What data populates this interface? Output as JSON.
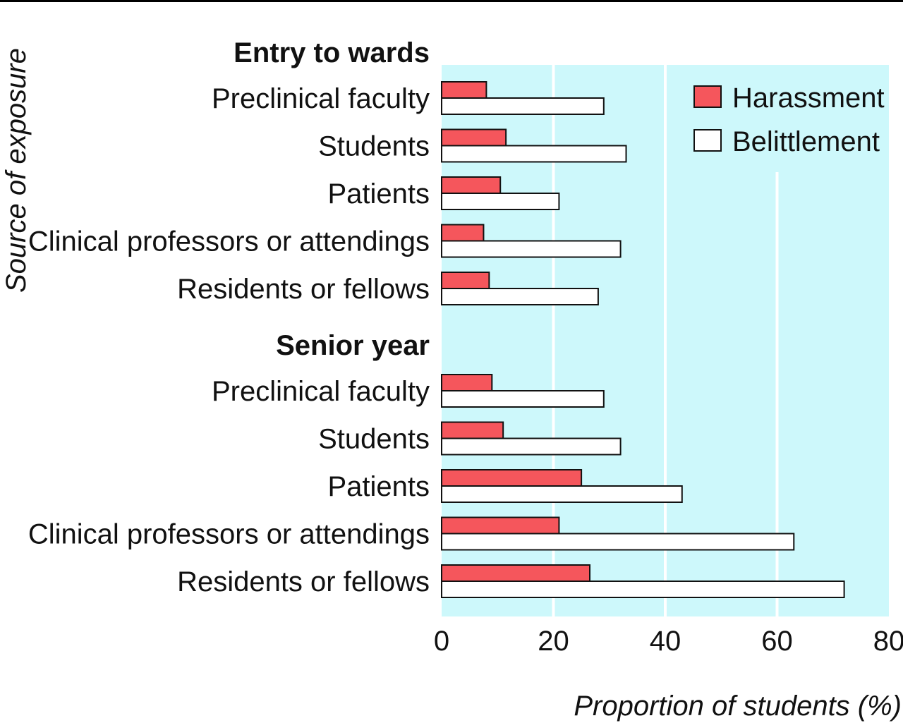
{
  "chart_data": {
    "type": "bar",
    "orientation": "horizontal",
    "ylabel": "Source of exposure",
    "xlabel": "Proportion of students (%)",
    "xlim": [
      0,
      80
    ],
    "xticks": [
      "0",
      "20",
      "40",
      "60",
      "80"
    ],
    "grid": true,
    "legend_position": "top-right",
    "colors": {
      "plot_background": "#cdf8fb",
      "Harassment": "#f5565c",
      "Belittlement": "#ffffff",
      "gridline": "#ffffff"
    },
    "legend": [
      "Harassment",
      "Belittlement"
    ],
    "groups": [
      {
        "name": "Entry to wards",
        "categories": [
          "Preclinical faculty",
          "Students",
          "Patients",
          "Clinical professors or attendings",
          "Residents or fellows"
        ],
        "series": [
          {
            "name": "Harassment",
            "values": [
              8,
              11.5,
              10.5,
              7.5,
              8.5
            ]
          },
          {
            "name": "Belittlement",
            "values": [
              29,
              33,
              21,
              32,
              28
            ]
          }
        ]
      },
      {
        "name": "Senior year",
        "categories": [
          "Preclinical faculty",
          "Students",
          "Patients",
          "Clinical professors or attendings",
          "Residents or fellows"
        ],
        "series": [
          {
            "name": "Harassment",
            "values": [
              9,
              11,
              25,
              21,
              26.5
            ]
          },
          {
            "name": "Belittlement",
            "values": [
              29,
              32,
              43,
              63,
              72
            ]
          }
        ]
      }
    ]
  }
}
